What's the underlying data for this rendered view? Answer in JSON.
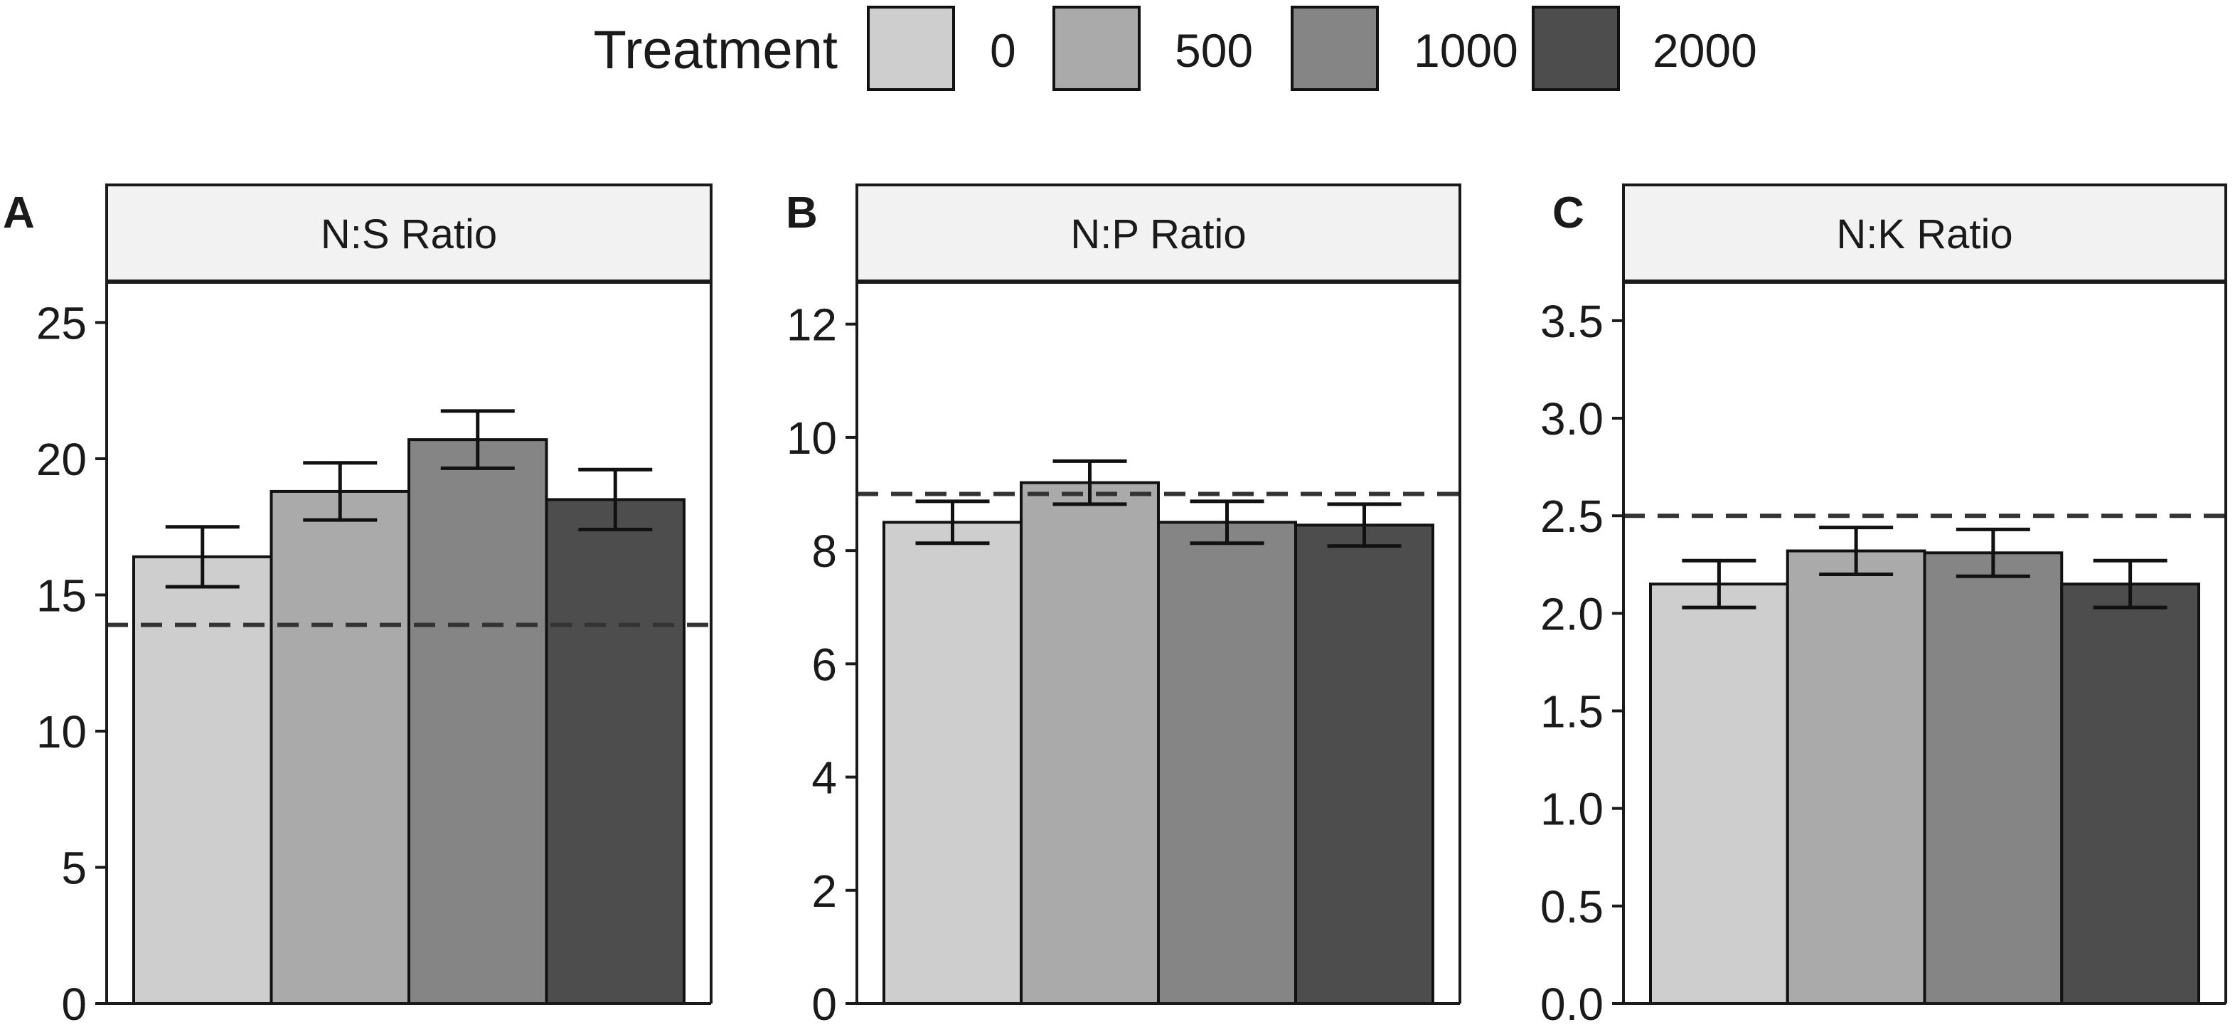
{
  "legend": {
    "title": "Treatment",
    "items": [
      {
        "label": "0",
        "color": "#cecece"
      },
      {
        "label": "500",
        "color": "#aaaaaa"
      },
      {
        "label": "1000",
        "color": "#858585"
      },
      {
        "label": "2000",
        "color": "#4d4d4d"
      }
    ]
  },
  "chart_data": [
    {
      "type": "bar",
      "panel": "A",
      "title": "N:S Ratio",
      "categories": [
        "0",
        "500",
        "1000",
        "2000"
      ],
      "values": [
        16.4,
        18.8,
        20.7,
        18.5
      ],
      "errors": [
        1.1,
        1.05,
        1.05,
        1.1
      ],
      "reference_line": 13.9,
      "ylim": [
        0,
        26.5
      ],
      "yticks": [
        0,
        5,
        10,
        15,
        20,
        25
      ],
      "ytick_labels": [
        "0",
        "5",
        "10",
        "15",
        "20",
        "25"
      ]
    },
    {
      "type": "bar",
      "panel": "B",
      "title": "N:P Ratio",
      "categories": [
        "0",
        "500",
        "1000",
        "2000"
      ],
      "values": [
        8.5,
        9.2,
        8.5,
        8.45
      ],
      "errors": [
        0.37,
        0.38,
        0.37,
        0.37
      ],
      "reference_line": 9.0,
      "ylim": [
        0,
        12.75
      ],
      "yticks": [
        0,
        2,
        4,
        6,
        8,
        10,
        12
      ],
      "ytick_labels": [
        "0",
        "2",
        "4",
        "6",
        "8",
        "10",
        "12"
      ]
    },
    {
      "type": "bar",
      "panel": "C",
      "title": "N:K Ratio",
      "categories": [
        "0",
        "500",
        "1000",
        "2000"
      ],
      "values": [
        2.15,
        2.32,
        2.31,
        2.15
      ],
      "errors": [
        0.12,
        0.12,
        0.12,
        0.12
      ],
      "reference_line": 2.5,
      "ylim": [
        0,
        3.7
      ],
      "yticks": [
        0,
        0.5,
        1,
        1.5,
        2,
        2.5,
        3,
        3.5
      ],
      "ytick_labels": [
        "0.0",
        "0.5",
        "1.0",
        "1.5",
        "2.0",
        "2.5",
        "3.0",
        "3.5"
      ]
    }
  ]
}
